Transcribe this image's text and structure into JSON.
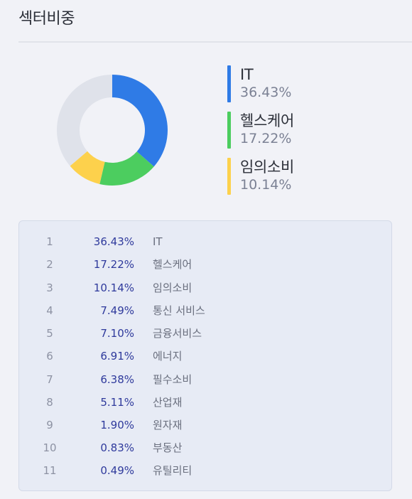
{
  "title": "섹터비중",
  "chart_data": {
    "type": "pie",
    "categories": [
      "IT",
      "헬스케어",
      "임의소비"
    ],
    "values": [
      36.43,
      17.22,
      10.14
    ],
    "remainder": 36.21,
    "colors": [
      "#2f7be6",
      "#4ccd5f",
      "#fdd14c"
    ],
    "remainder_color": "#dfe2ea"
  },
  "legend": [
    {
      "name": "IT",
      "pct": "36.43%",
      "color": "#2f7be6"
    },
    {
      "name": "헬스케어",
      "pct": "17.22%",
      "color": "#4ccd5f"
    },
    {
      "name": "임의소비",
      "pct": "10.14%",
      "color": "#fdd14c"
    }
  ],
  "rows": [
    {
      "rank": "1",
      "pct": "36.43%",
      "name": "IT"
    },
    {
      "rank": "2",
      "pct": "17.22%",
      "name": "헬스케어"
    },
    {
      "rank": "3",
      "pct": "10.14%",
      "name": "임의소비"
    },
    {
      "rank": "4",
      "pct": "7.49%",
      "name": "통신 서비스"
    },
    {
      "rank": "5",
      "pct": "7.10%",
      "name": "금융서비스"
    },
    {
      "rank": "6",
      "pct": "6.91%",
      "name": "에너지"
    },
    {
      "rank": "7",
      "pct": "6.38%",
      "name": "필수소비"
    },
    {
      "rank": "8",
      "pct": "5.11%",
      "name": "산업재"
    },
    {
      "rank": "9",
      "pct": "1.90%",
      "name": "원자재"
    },
    {
      "rank": "10",
      "pct": "0.83%",
      "name": "부동산"
    },
    {
      "rank": "11",
      "pct": "0.49%",
      "name": "유틸리티"
    }
  ]
}
